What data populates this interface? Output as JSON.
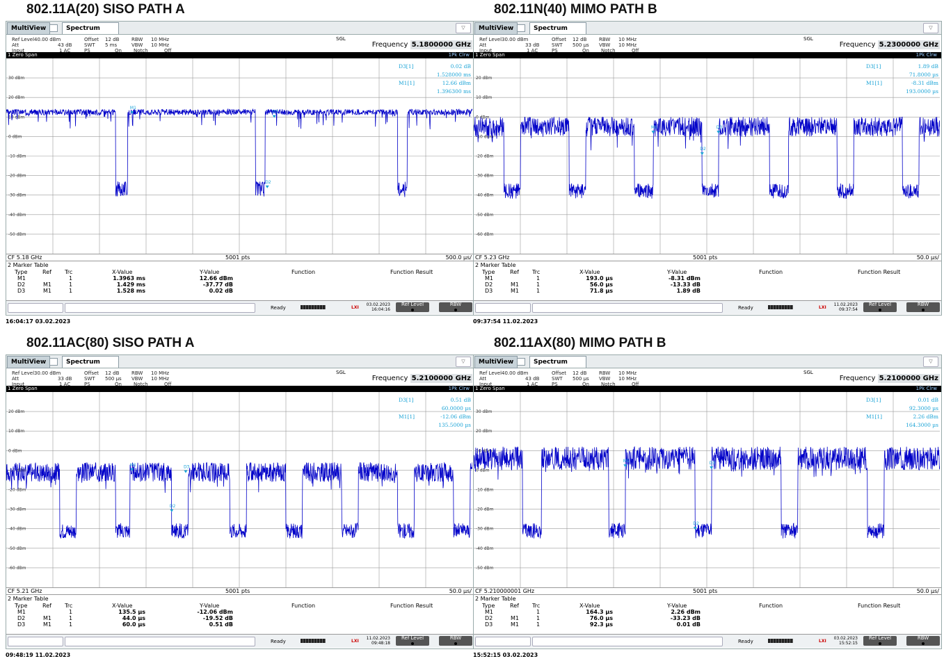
{
  "colors": {
    "trace": "#0000c8",
    "marker": "#1aa3d6",
    "grid": "#9a9a9a",
    "text": "#111111",
    "bar_bg": "#000000"
  },
  "panels": [
    {
      "title": "802.11A(20) SISO PATH A",
      "ref_level": "40.00 dBm",
      "att": "43 dB",
      "swt": "5 ms",
      "offset": "12 dB",
      "rbw": "10 MHz",
      "vbw": "10 MHz",
      "input": "1 AC",
      "ps": "PS",
      "ps_val": "On",
      "notch": "Notch",
      "notch_val": "Off",
      "frequency": "5.1800000 GHz",
      "cf": "CF 5.18 GHz",
      "pts": "5001 pts",
      "per_div": "500.0 µs/",
      "top_dbm": 40,
      "y_labels": [
        "30 dBm",
        "20 dBm",
        "10 dBm",
        "0 dBm",
        "-10 dBm",
        "-20 dBm",
        "-30 dBm",
        "-40 dBm",
        "-50 dBm"
      ],
      "marker_box": [
        {
          "name": "D3[1]",
          "val": "0.02 dB",
          "val2": "1.528000 ms"
        },
        {
          "name": "M1[1]",
          "val": "12.66 dBm",
          "val2": "1.396300 ms"
        }
      ],
      "table": [
        {
          "type": "M1",
          "ref": "",
          "trc": "1",
          "x": "1.3963 ms",
          "y": "12.66 dBm"
        },
        {
          "type": "D2",
          "ref": "M1",
          "trc": "1",
          "x": "1.429 ms",
          "y": "-37.77 dB"
        },
        {
          "type": "D3",
          "ref": "M1",
          "trc": "1",
          "x": "1.528 ms",
          "y": "0.02 dB"
        }
      ],
      "date": "03.02.2023",
      "time": "16:04:16",
      "timestamp": "16:04:17 03.02.2023",
      "high": 12.5,
      "low": -27,
      "gaps": [
        [
          0.235,
          0.26
        ],
        [
          0.535,
          0.555
        ],
        [
          0.84,
          0.86
        ]
      ],
      "noise_high": 1.5,
      "markers": [
        {
          "label": "M1",
          "x": 0.27,
          "y": 14
        },
        {
          "label": "D3",
          "x": 0.575,
          "y": 12
        },
        {
          "label": "D2",
          "x": 0.56,
          "y": -24
        }
      ]
    },
    {
      "title": "802.11N(40) MIMO PATH B",
      "ref_level": "30.00 dBm",
      "att": "33 dB",
      "swt": "500 µs",
      "offset": "12 dB",
      "rbw": "10 MHz",
      "vbw": "10 MHz",
      "input": "1 AC",
      "ps": "PS",
      "ps_val": "On",
      "notch": "Notch",
      "notch_val": "Off",
      "frequency": "5.2300000 GHz",
      "cf": "CF 5.23 GHz",
      "pts": "5001 pts",
      "per_div": "50.0 µs/",
      "top_dbm": 30,
      "y_labels": [
        "20 dBm",
        "10 dBm",
        "0 dBm",
        "-10 dBm",
        "-20 dBm",
        "-30 dBm",
        "-40 dBm",
        "-50 dBm",
        "-60 dBm"
      ],
      "marker_box": [
        {
          "name": "D3[1]",
          "val": "1.89 dB",
          "val2": "71.8000 µs"
        },
        {
          "name": "M1[1]",
          "val": "-8.31 dBm",
          "val2": "193.0000 µs"
        }
      ],
      "table": [
        {
          "type": "M1",
          "ref": "",
          "trc": "1",
          "x": "193.0 µs",
          "y": "-8.31 dBm"
        },
        {
          "type": "D2",
          "ref": "M1",
          "trc": "1",
          "x": "56.0 µs",
          "y": "-13.33 dB"
        },
        {
          "type": "D3",
          "ref": "M1",
          "trc": "1",
          "x": "71.8 µs",
          "y": "1.89 dB"
        }
      ],
      "date": "11.02.2023",
      "time": "09:37:54",
      "timestamp": "09:37:54 11.02.2023",
      "high": -5,
      "low": -38,
      "gaps": [
        [
          0.065,
          0.1
        ],
        [
          0.205,
          0.24
        ],
        [
          0.345,
          0.385
        ],
        [
          0.49,
          0.525
        ],
        [
          0.635,
          0.675
        ],
        [
          0.78,
          0.815
        ],
        [
          0.92,
          0.955
        ]
      ],
      "noise_high": 5,
      "markers": [
        {
          "label": "M1",
          "x": 0.385,
          "y": -6
        },
        {
          "label": "D3",
          "x": 0.525,
          "y": -6
        },
        {
          "label": "D2",
          "x": 0.49,
          "y": -17
        }
      ]
    },
    {
      "title": "802.11AC(80) SISO PATH A",
      "ref_level": "30.00 dBm",
      "att": "33 dB",
      "swt": "500 µs",
      "offset": "12 dB",
      "rbw": "10 MHz",
      "vbw": "10 MHz",
      "input": "1 AC",
      "ps": "PS",
      "ps_val": "On",
      "notch": "Notch",
      "notch_val": "Off",
      "frequency": "5.2100000 GHz",
      "cf": "CF 5.21 GHz",
      "pts": "5001 pts",
      "per_div": "50.0 µs/",
      "top_dbm": 30,
      "y_labels": [
        "20 dBm",
        "10 dBm",
        "0 dBm",
        "-10 dBm",
        "-20 dBm",
        "-30 dBm",
        "-40 dBm",
        "-50 dBm",
        "-60 dBm"
      ],
      "marker_box": [
        {
          "name": "D3[1]",
          "val": "0.51 dB",
          "val2": "60.0000 µs"
        },
        {
          "name": "M1[1]",
          "val": "-12.06 dBm",
          "val2": "135.5000 µs"
        }
      ],
      "table": [
        {
          "type": "M1",
          "ref": "",
          "trc": "1",
          "x": "135.5 µs",
          "y": "-12.06 dBm"
        },
        {
          "type": "D2",
          "ref": "M1",
          "trc": "1",
          "x": "44.0 µs",
          "y": "-19.52 dB"
        },
        {
          "type": "D3",
          "ref": "M1",
          "trc": "1",
          "x": "60.0 µs",
          "y": "0.51 dB"
        }
      ],
      "date": "11.02.2023",
      "time": "09:48:18",
      "timestamp": "09:48:19 11.02.2023",
      "high": -11,
      "low": -41,
      "gaps": [
        [
          0.115,
          0.15
        ],
        [
          0.235,
          0.265
        ],
        [
          0.355,
          0.39
        ],
        [
          0.48,
          0.515
        ],
        [
          0.6,
          0.635
        ],
        [
          0.72,
          0.755
        ],
        [
          0.84,
          0.875
        ],
        [
          0.96,
          0.995
        ]
      ],
      "noise_high": 5,
      "markers": [
        {
          "label": "M1",
          "x": 0.27,
          "y": -8
        },
        {
          "label": "D3",
          "x": 0.385,
          "y": -9
        },
        {
          "label": "D2",
          "x": 0.355,
          "y": -29
        }
      ]
    },
    {
      "title": "802.11AX(80) MIMO PATH B",
      "ref_level": "40.00 dBm",
      "att": "43 dB",
      "swt": "500 µs",
      "offset": "12 dB",
      "rbw": "10 MHz",
      "vbw": "10 MHz",
      "input": "1 AC",
      "ps": "PS",
      "ps_val": "On",
      "notch": "Notch",
      "notch_val": "Off",
      "frequency": "5.2100000 GHz",
      "cf": "CF 5.210000001 GHz",
      "pts": "5001 pts",
      "per_div": "50.0 µs/",
      "top_dbm": 40,
      "y_labels": [
        "30 dBm",
        "20 dBm",
        "10 dBm",
        "0 dBm",
        "-10 dBm",
        "-20 dBm",
        "-30 dBm",
        "-40 dBm",
        "-50 dBm"
      ],
      "marker_box": [
        {
          "name": "D3[1]",
          "val": "0.01 dB",
          "val2": "92.3000 µs"
        },
        {
          "name": "M1[1]",
          "val": "2.26 dBm",
          "val2": "164.3000 µs"
        }
      ],
      "table": [
        {
          "type": "M1",
          "ref": "",
          "trc": "1",
          "x": "164.3 µs",
          "y": "2.26 dBm"
        },
        {
          "type": "D2",
          "ref": "M1",
          "trc": "1",
          "x": "76.0 µs",
          "y": "-33.23 dB"
        },
        {
          "type": "D3",
          "ref": "M1",
          "trc": "1",
          "x": "92.3 µs",
          "y": "0.01 dB"
        }
      ],
      "date": "03.02.2023",
      "time": "15:52:15",
      "timestamp": "15:52:15 03.02.2023",
      "high": 6,
      "low": -31,
      "gaps": [
        [
          0.105,
          0.145
        ],
        [
          0.29,
          0.325
        ],
        [
          0.475,
          0.51
        ],
        [
          0.66,
          0.695
        ],
        [
          0.845,
          0.88
        ]
      ],
      "noise_high": 6,
      "markers": [
        {
          "label": "M1",
          "x": 0.325,
          "y": 4
        },
        {
          "label": "D3",
          "x": 0.51,
          "y": 3
        },
        {
          "label": "D2",
          "x": 0.475,
          "y": -28
        }
      ]
    }
  ],
  "ui": {
    "multiview": "MultiView",
    "spectrum": "Spectrum",
    "sgl": "SGL",
    "frequency_label": "Frequency",
    "zero_span": "1 Zero Span",
    "trace_mode": "1Pk Clrw",
    "marker_table": "2 Marker Table",
    "col_type": "Type",
    "col_ref": "Ref",
    "col_trc": "Trc",
    "col_x": "X-Value",
    "col_y": "Y-Value",
    "col_function": "Function",
    "col_result": "Function Result",
    "ready": "Ready",
    "btn_ref": "Ref Level",
    "btn_rbw": "RBW",
    "lbl_ref": "Ref Level",
    "lbl_att": "Att",
    "lbl_input": "Input",
    "lbl_offset": "Offset",
    "lbl_swt": "SWT",
    "lbl_rbw": "RBW",
    "lbl_vbw": "VBW"
  }
}
